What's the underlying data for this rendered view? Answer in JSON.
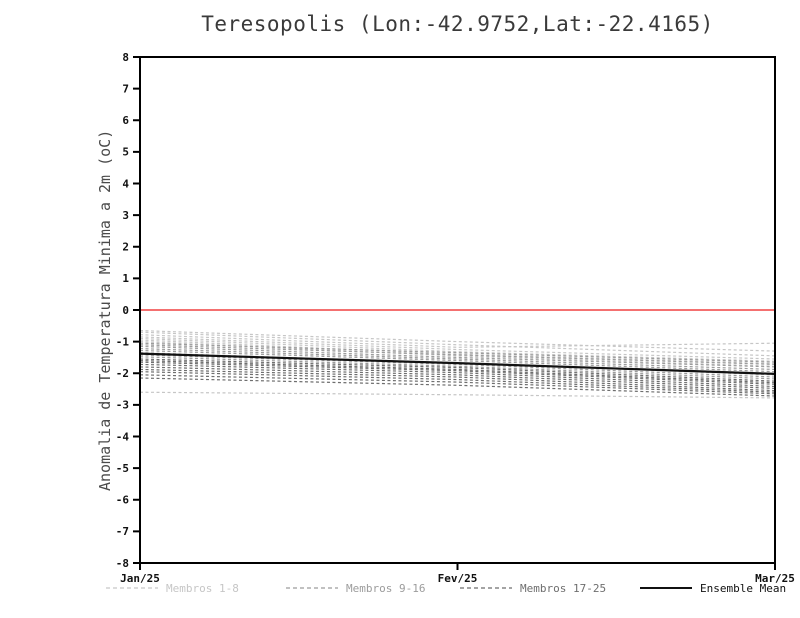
{
  "page": {
    "background": "#ffffff"
  },
  "chart_data": {
    "type": "line",
    "title": "Teresopolis (Lon:-42.9752,Lat:-22.4165)",
    "ylabel": "Anomalia de Temperatura Minima a 2m (oC)",
    "xlabel": "",
    "x_categories": [
      "Jan/25",
      "Fev/25",
      "Mar/25"
    ],
    "ylim": [
      -8,
      8
    ],
    "ytick_step": 1,
    "grid": false,
    "legend_position": "bottom",
    "zero_line": {
      "y": 0,
      "color": "#f04040"
    },
    "series_groups": [
      {
        "name": "Membros 1-8",
        "color": "#c6c6c6",
        "style": "dashed",
        "members": [
          [
            -0.65,
            -1.0,
            -1.3
          ],
          [
            -0.7,
            -1.1,
            -1.45
          ],
          [
            -0.78,
            -1.18,
            -1.05
          ],
          [
            -0.85,
            -1.25,
            -1.55
          ],
          [
            -0.9,
            -1.32,
            -1.62
          ],
          [
            -0.95,
            -1.4,
            -1.7
          ],
          [
            -1.0,
            -1.45,
            -1.78
          ],
          [
            -2.6,
            -2.68,
            -2.78
          ]
        ]
      },
      {
        "name": "Membros 9-16",
        "color": "#9c9c9c",
        "style": "dashed",
        "members": [
          [
            -1.05,
            -1.35,
            -1.65
          ],
          [
            -1.1,
            -1.42,
            -1.72
          ],
          [
            -1.15,
            -1.5,
            -1.8
          ],
          [
            -1.22,
            -1.55,
            -1.88
          ],
          [
            -1.28,
            -1.6,
            -1.95
          ],
          [
            -1.35,
            -1.68,
            -2.05
          ],
          [
            -1.42,
            -1.72,
            -2.12
          ],
          [
            -1.48,
            -1.78,
            -2.18
          ]
        ]
      },
      {
        "name": "Membros 17-25",
        "color": "#6e6e6e",
        "style": "dashed",
        "members": [
          [
            -1.55,
            -1.82,
            -2.25
          ],
          [
            -1.6,
            -1.88,
            -2.3
          ],
          [
            -1.65,
            -1.92,
            -2.35
          ],
          [
            -1.72,
            -1.98,
            -2.42
          ],
          [
            -1.8,
            -2.05,
            -2.48
          ],
          [
            -1.88,
            -2.12,
            -2.55
          ],
          [
            -1.95,
            -2.2,
            -2.6
          ],
          [
            -2.05,
            -2.28,
            -2.65
          ],
          [
            -2.15,
            -2.38,
            -2.72
          ]
        ]
      }
    ],
    "ensemble_mean": {
      "name": "Ensemble Mean",
      "color": "#111111",
      "style": "solid",
      "values": [
        -1.38,
        -1.68,
        -2.02
      ]
    }
  }
}
